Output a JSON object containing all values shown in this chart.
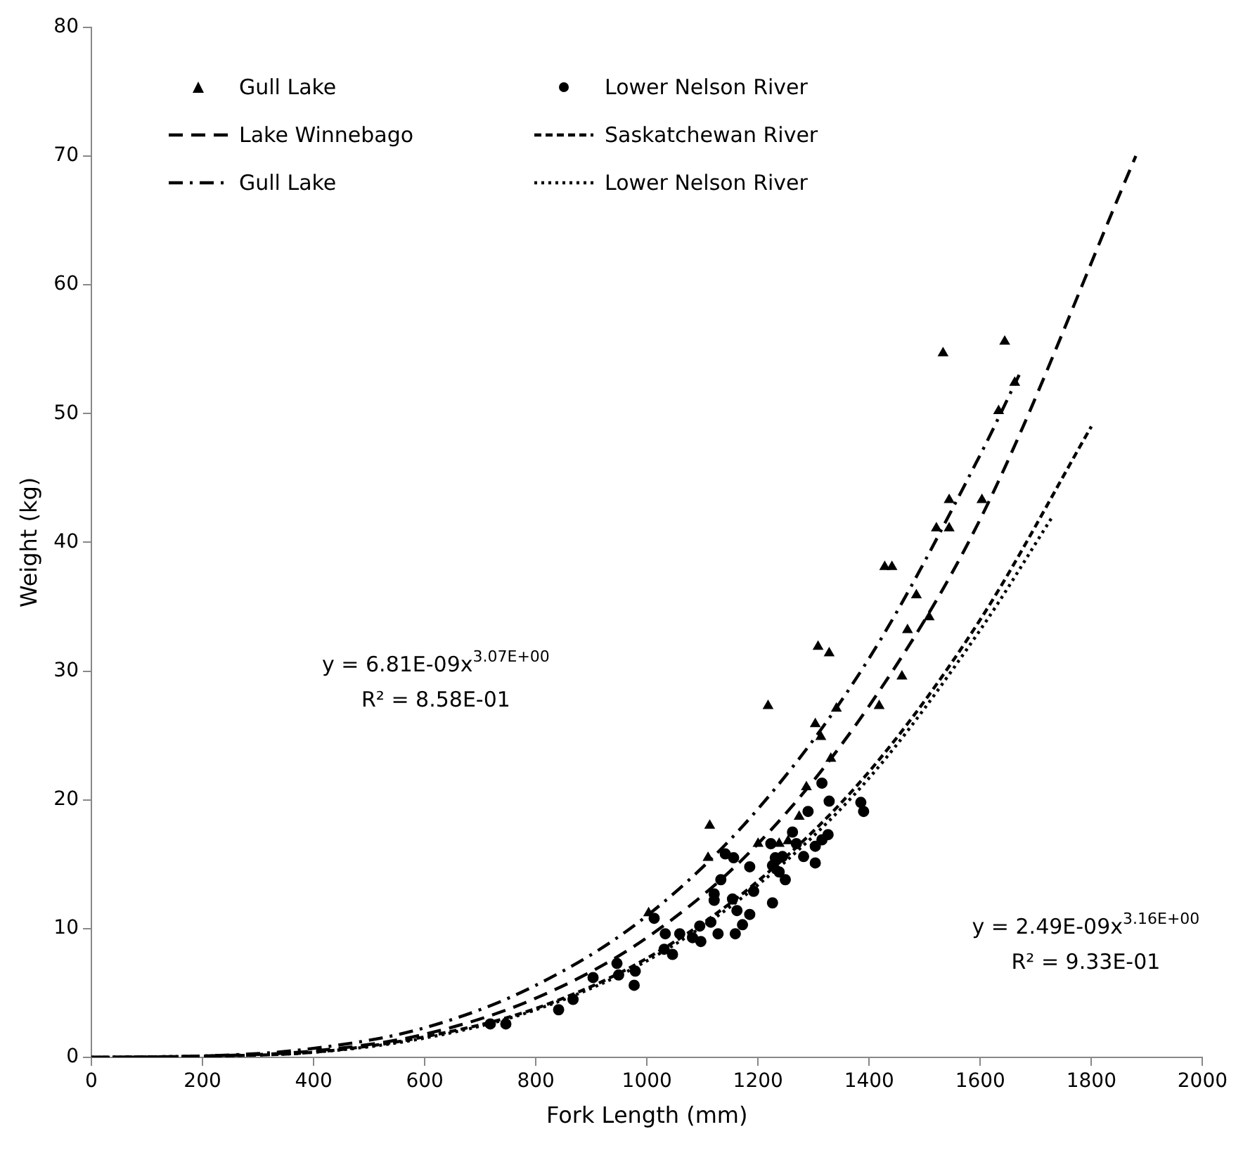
{
  "chart_data": {
    "type": "scatter",
    "xlabel": "Fork Length (mm)",
    "ylabel": "Weight (kg)",
    "xlim": [
      0,
      2000
    ],
    "xticks": [
      0,
      200,
      400,
      600,
      800,
      1000,
      1200,
      1400,
      1600,
      1800,
      2000
    ],
    "ylim": [
      0,
      80
    ],
    "yticks": [
      0,
      10,
      20,
      30,
      40,
      50,
      60,
      70,
      80
    ],
    "grid": false,
    "legend": "top left",
    "annotations": [
      "y = 6.81E-09x$^{3.07E+00}$",
      "R² = 8.58E-01",
      "y = 2.49E-09x$^{3.16E+00}$",
      "R² = 9.33E-01"
    ],
    "series": [
      {
        "name": "Gull Lake",
        "type": "scatter",
        "marker": "triangle",
        "color": "#000000",
        "x": [
          1003,
          1113,
          1110,
          1218,
          1308,
          1328,
          1303,
          1313,
          1331,
          1287,
          1274,
          1200,
          1238,
          1254,
          1341,
          1418,
          1459,
          1469,
          1508,
          1485,
          1428,
          1441,
          1521,
          1533,
          1644,
          1662,
          1633,
          1544,
          1603,
          1544
        ],
        "values": [
          11.2,
          18.0,
          15.5,
          27.3,
          31.9,
          31.4,
          25.9,
          24.9,
          23.2,
          21.0,
          18.7,
          16.6,
          16.6,
          16.8,
          27.1,
          27.3,
          29.6,
          33.2,
          34.2,
          35.9,
          38.1,
          38.1,
          41.1,
          54.7,
          55.6,
          52.4,
          50.2,
          43.3,
          43.3,
          41.1
        ]
      },
      {
        "name": "Lower Nelson River",
        "type": "scatter",
        "marker": "circle",
        "color": "#000000",
        "x": [
          718,
          746,
          841,
          867,
          903,
          946,
          949,
          977,
          979,
          1013,
          1033,
          1031,
          1046,
          1059,
          1082,
          1095,
          1097,
          1115,
          1121,
          1121,
          1133,
          1128,
          1141,
          1156,
          1154,
          1159,
          1162,
          1172,
          1185,
          1185,
          1192,
          1226,
          1223,
          1226,
          1231,
          1238,
          1249,
          1244,
          1262,
          1269,
          1282,
          1290,
          1303,
          1303,
          1315,
          1315,
          1326,
          1328,
          1385,
          1390
        ],
        "values": [
          2.6,
          2.6,
          3.7,
          4.5,
          6.2,
          7.3,
          6.4,
          5.6,
          6.7,
          10.8,
          9.6,
          8.4,
          8.0,
          9.6,
          9.3,
          10.2,
          9.0,
          10.5,
          12.7,
          12.2,
          13.8,
          9.6,
          15.8,
          15.5,
          12.3,
          9.6,
          11.4,
          10.3,
          11.1,
          14.8,
          12.9,
          12.0,
          16.6,
          14.9,
          15.5,
          14.4,
          13.8,
          15.6,
          17.5,
          16.6,
          15.6,
          19.1,
          15.1,
          16.4,
          16.9,
          21.3,
          17.3,
          19.9,
          19.8,
          19.1
        ]
      },
      {
        "name": "Lake Winnebago",
        "type": "line",
        "line_style": "dashed",
        "color": "#000000",
        "x": [
          0,
          200,
          400,
          600,
          800,
          1000,
          1200,
          1400,
          1600,
          1880
        ],
        "values": [
          0,
          0.1,
          0.5,
          1.8,
          4.6,
          9.3,
          16.6,
          27.3,
          41.8,
          70
        ]
      },
      {
        "name": "Saskatchewan River",
        "type": "line",
        "line_style": "dashed",
        "color": "#000000",
        "x": [
          0,
          200,
          400,
          600,
          800,
          1000,
          1200,
          1400,
          1600,
          1800
        ],
        "values": [
          0,
          0.1,
          0.4,
          1.6,
          3.8,
          7.7,
          13.7,
          22.2,
          34,
          49
        ]
      },
      {
        "name": "Gull Lake",
        "type": "line",
        "line_style": "dashdot",
        "color": "#000000",
        "x": [
          0,
          200,
          400,
          600,
          800,
          1000,
          1200,
          1400,
          1600,
          1670
        ],
        "values": [
          0,
          0.1,
          0.7,
          2.3,
          5.6,
          11,
          19.3,
          31,
          46.8,
          53
        ]
      },
      {
        "name": "Lower Nelson River",
        "type": "line",
        "line_style": "dotted",
        "color": "#000000",
        "x": [
          0,
          200,
          400,
          600,
          800,
          1000,
          1200,
          1400,
          1600,
          1730
        ],
        "values": [
          0,
          0.1,
          0.4,
          1.5,
          3.7,
          7.5,
          13.4,
          21.7,
          33.2,
          42
        ]
      }
    ]
  }
}
